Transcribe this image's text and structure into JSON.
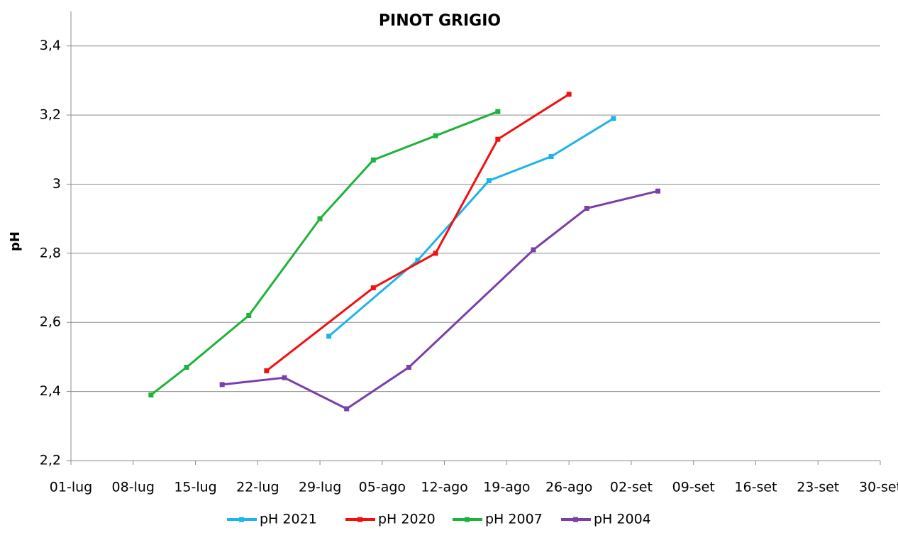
{
  "chart_data": {
    "type": "line",
    "title": "PINOT GRIGIO",
    "y_label": "pH",
    "xlim": [
      182,
      273
    ],
    "xticks": [
      {
        "value": 182,
        "label": "01-lug"
      },
      {
        "value": 189,
        "label": "08-lug"
      },
      {
        "value": 196,
        "label": "15-lug"
      },
      {
        "value": 203,
        "label": "22-lug"
      },
      {
        "value": 210,
        "label": "29-lug"
      },
      {
        "value": 217,
        "label": "05-ago"
      },
      {
        "value": 224,
        "label": "12-ago"
      },
      {
        "value": 231,
        "label": "19-ago"
      },
      {
        "value": 238,
        "label": "26-ago"
      },
      {
        "value": 245,
        "label": "02-set"
      },
      {
        "value": 252,
        "label": "09-set"
      },
      {
        "value": 259,
        "label": "16-set"
      },
      {
        "value": 266,
        "label": "23-set"
      },
      {
        "value": 273,
        "label": "30-set"
      }
    ],
    "ylim": [
      2.2,
      3.5
    ],
    "yticks": [
      {
        "value": 2.2,
        "label": "2,2"
      },
      {
        "value": 2.4,
        "label": "2,4"
      },
      {
        "value": 2.6,
        "label": "2,6"
      },
      {
        "value": 2.8,
        "label": "2,8"
      },
      3,
      {
        "value": 3.2,
        "label": "3,2"
      },
      {
        "value": 3.4,
        "label": "3,4"
      }
    ],
    "grid": true,
    "legend": "bottom",
    "series": [
      {
        "name": "pH 2021",
        "color": "#1fb4e8",
        "x": [
          211,
          221,
          229,
          236,
          243
        ],
        "values": [
          2.56,
          2.78,
          3.01,
          3.08,
          3.19
        ]
      },
      {
        "name": "pH 2020",
        "color": "#f01010",
        "x": [
          204,
          216,
          223,
          230,
          238
        ],
        "values": [
          2.46,
          2.7,
          2.8,
          3.13,
          3.26
        ]
      },
      {
        "name": "pH 2007",
        "color": "#1db33a",
        "x": [
          191,
          195,
          202,
          210,
          216,
          223,
          230
        ],
        "values": [
          2.39,
          2.47,
          2.62,
          2.9,
          3.07,
          3.14,
          3.21
        ]
      },
      {
        "name": "pH 2004",
        "color": "#7a3fa8",
        "x": [
          199,
          206,
          213,
          220,
          234,
          240,
          248
        ],
        "values": [
          2.42,
          2.44,
          2.35,
          2.47,
          2.81,
          2.93,
          2.98
        ]
      }
    ]
  }
}
